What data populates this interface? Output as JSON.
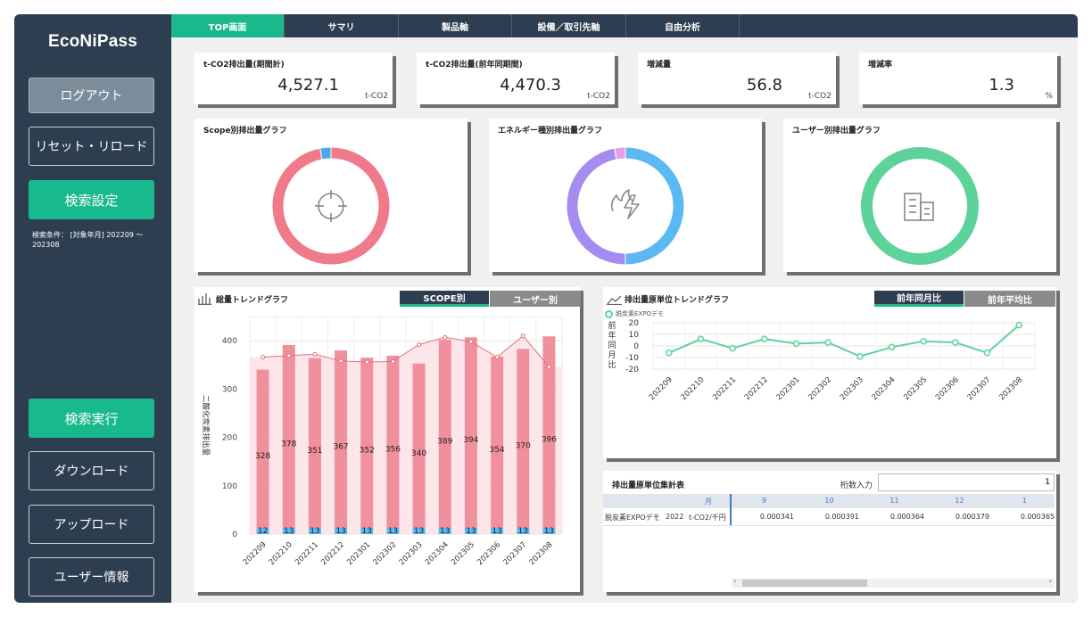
{
  "app": {
    "logo": "EcoNiPass"
  },
  "sidebar": {
    "logout": "ログアウト",
    "reset": "リセット・リロード",
    "search_settings": "検索設定",
    "condition_label": "検索条件：",
    "condition_value": "[対象年月] 202209 ～ 202308",
    "execute": "検索実行",
    "download": "ダウンロード",
    "upload": "アップロード",
    "user_info": "ユーザー情報"
  },
  "tabs": [
    "TOP画面",
    "サマリ",
    "製品軸",
    "設備／取引先軸",
    "自由分析"
  ],
  "kpis": [
    {
      "title": "t-CO2排出量(期間計)",
      "value": "4,527.1",
      "unit": "t-CO2"
    },
    {
      "title": "t-CO2排出量(前年同期間)",
      "value": "4,470.3",
      "unit": "t-CO2"
    },
    {
      "title": "増減量",
      "value": "56.8",
      "unit": "t-CO2"
    },
    {
      "title": "増減率",
      "value": "1.3",
      "unit": "%"
    }
  ],
  "donuts": [
    {
      "title": "Scope別排出量グラフ",
      "icon": "target-icon",
      "slices": [
        {
          "value": 97,
          "color": "#f07a8a"
        },
        {
          "value": 3,
          "color": "#4aa8e8"
        }
      ]
    },
    {
      "title": "エネルギー種別排出量グラフ",
      "icon": "energy-icon",
      "slices": [
        {
          "value": 50,
          "color": "#5cb8f0"
        },
        {
          "value": 47,
          "color": "#a58cf0"
        },
        {
          "value": 3,
          "color": "#e5a0e8"
        }
      ]
    },
    {
      "title": "ユーザー別排出量グラフ",
      "icon": "building-icon",
      "slices": [
        {
          "value": 100,
          "color": "#5dd39a"
        }
      ]
    }
  ],
  "trend": {
    "title": "総量トレンドグラフ",
    "btn_scope": "SCOPE別",
    "btn_user": "ユーザー別",
    "colors": {
      "bar": "#f0909c",
      "line": "#e07080",
      "scope1": "#5cb8f0"
    }
  },
  "intensity": {
    "title": "排出量原単位トレンドグラフ",
    "btn_yoy": "前年同月比",
    "btn_avg": "前年平均比",
    "legend": "脱炭素EXPOデモ",
    "ylabel": "前年同月比",
    "colors": {
      "line": "#5dd39a"
    }
  },
  "table": {
    "title": "排出量原単位集計表",
    "digits_label": "桁数入力",
    "digits_value": "1",
    "header_month": "月",
    "months": [
      "9",
      "10",
      "11",
      "12",
      "1"
    ],
    "row_label": "脱炭素EXPOデモ",
    "row_year": "2022",
    "row_unit": "t-CO2/千円",
    "row_values": [
      "0.000341",
      "0.000391",
      "0.000364",
      "0.000379",
      "0.000365"
    ]
  },
  "chart_data": [
    {
      "type": "bar",
      "title": "総量トレンドグラフ",
      "ylabel": "二酸化炭素排出量",
      "categories": [
        "202209",
        "202210",
        "202211",
        "202212",
        "202301",
        "202302",
        "202303",
        "202304",
        "202305",
        "202306",
        "202307",
        "202308"
      ],
      "series": [
        {
          "values": [
            328,
            378,
            351,
            367,
            352,
            356,
            340,
            389,
            394,
            354,
            370,
            396
          ]
        },
        {
          "values": [
            12,
            13,
            13,
            13,
            13,
            13,
            13,
            13,
            13,
            13,
            13,
            13
          ]
        }
      ],
      "line": [
        366,
        369,
        372,
        358,
        356,
        357,
        392,
        407,
        398,
        366,
        410,
        346
      ],
      "ylim": [
        0,
        450
      ],
      "yticks": [
        0,
        100,
        200,
        300,
        400
      ],
      "grid": true
    },
    {
      "type": "line",
      "title": "排出量原単位トレンドグラフ",
      "ylabel": "前年同月比",
      "categories": [
        "202209",
        "202210",
        "202211",
        "202212",
        "202301",
        "202302",
        "202303",
        "202304",
        "202305",
        "202306",
        "202307",
        "202308"
      ],
      "series": [
        {
          "name": "脱炭素EXPOデモ",
          "values": [
            -6,
            6,
            -2,
            6,
            2,
            3,
            -9,
            -1,
            4,
            3,
            -6,
            18
          ]
        }
      ],
      "ylim": [
        -20,
        20
      ],
      "yticks": [
        -20,
        -10,
        0,
        10,
        20
      ],
      "grid": true
    }
  ]
}
